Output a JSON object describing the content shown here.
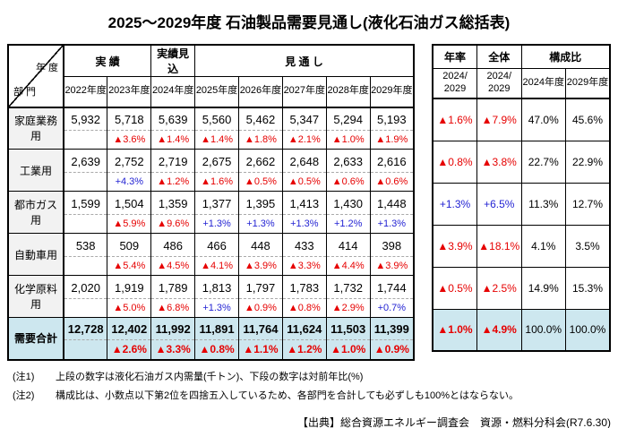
{
  "title": "2025～2029年度 石油製品需要見通し(液化石油ガス総括表)",
  "colors": {
    "decrease_red": "#e60000",
    "increase_blue": "#2323d3",
    "total_row_bg": "#cde7ef",
    "label_bg": "#f2f2f2"
  },
  "main_table": {
    "corner_top": "年 度",
    "corner_bottom": "部 門",
    "group_actual": "実 績",
    "group_estimate": "実績見込",
    "group_outlook": "見 通 し",
    "years": [
      "2022年度",
      "2023年度",
      "2024年度",
      "2025年度",
      "2026年度",
      "2027年度",
      "2028年度",
      "2029年度"
    ]
  },
  "right_table": {
    "group_rate": "年率",
    "group_total": "全体",
    "group_composition": "構成比",
    "subheads": [
      "2024/\n2029",
      "2024/\n2029",
      "2024年度",
      "2029年度"
    ]
  },
  "rows": [
    {
      "label": "家庭業務用",
      "is_total": false,
      "values": [
        "5,932",
        "5,718",
        "5,639",
        "5,560",
        "5,462",
        "5,347",
        "5,294",
        "5,193"
      ],
      "pcts": [
        "",
        "▲3.6%",
        "▲1.4%",
        "▲1.4%",
        "▲1.8%",
        "▲2.1%",
        "▲1.0%",
        "▲1.9%"
      ],
      "summary": [
        "▲1.6%",
        "▲7.9%",
        "47.0%",
        "45.6%"
      ]
    },
    {
      "label": "工業用",
      "is_total": false,
      "values": [
        "2,639",
        "2,752",
        "2,719",
        "2,675",
        "2,662",
        "2,648",
        "2,633",
        "2,616"
      ],
      "pcts": [
        "",
        "+4.3%",
        "▲1.2%",
        "▲1.6%",
        "▲0.5%",
        "▲0.5%",
        "▲0.6%",
        "▲0.6%"
      ],
      "summary": [
        "▲0.8%",
        "▲3.8%",
        "22.7%",
        "22.9%"
      ]
    },
    {
      "label": "都市ガス用",
      "is_total": false,
      "values": [
        "1,599",
        "1,504",
        "1,359",
        "1,377",
        "1,395",
        "1,413",
        "1,430",
        "1,448"
      ],
      "pcts": [
        "",
        "▲5.9%",
        "▲9.6%",
        "+1.3%",
        "+1.3%",
        "+1.3%",
        "+1.2%",
        "+1.3%"
      ],
      "summary": [
        "+1.3%",
        "+6.5%",
        "11.3%",
        "12.7%"
      ]
    },
    {
      "label": "自動車用",
      "is_total": false,
      "values": [
        "538",
        "509",
        "486",
        "466",
        "448",
        "433",
        "414",
        "398"
      ],
      "pcts": [
        "",
        "▲5.4%",
        "▲4.5%",
        "▲4.1%",
        "▲3.9%",
        "▲3.3%",
        "▲4.4%",
        "▲3.9%"
      ],
      "summary": [
        "▲3.9%",
        "▲18.1%",
        "4.1%",
        "3.5%"
      ]
    },
    {
      "label": "化学原料用",
      "is_total": false,
      "values": [
        "2,020",
        "1,919",
        "1,789",
        "1,813",
        "1,797",
        "1,783",
        "1,732",
        "1,744"
      ],
      "pcts": [
        "",
        "▲5.0%",
        "▲6.8%",
        "+1.3%",
        "▲0.9%",
        "▲0.8%",
        "▲2.9%",
        "+0.7%"
      ],
      "summary": [
        "▲0.5%",
        "▲2.5%",
        "14.9%",
        "15.3%"
      ]
    },
    {
      "label": "需要合計",
      "is_total": true,
      "values": [
        "12,728",
        "12,402",
        "11,992",
        "11,891",
        "11,764",
        "11,624",
        "11,503",
        "11,399"
      ],
      "pcts": [
        "",
        "▲2.6%",
        "▲3.3%",
        "▲0.8%",
        "▲1.1%",
        "▲1.2%",
        "▲1.0%",
        "▲0.9%"
      ],
      "summary": [
        "▲1.0%",
        "▲4.9%",
        "100.0%",
        "100.0%"
      ]
    }
  ],
  "notes": [
    {
      "label": "(注1)",
      "text": "上段の数字は液化石油ガス内需量(千トン)、下段の数字は対前年比(%)"
    },
    {
      "label": "(注2)",
      "text": "構成比は、小数点以下第2位を四捨五入しているため、各部門を合計しても必ずしも100%とはならない。"
    }
  ],
  "source": "【出典】総合資源エネルギー調査会　資源・燃料分科会(R7.6.30)"
}
